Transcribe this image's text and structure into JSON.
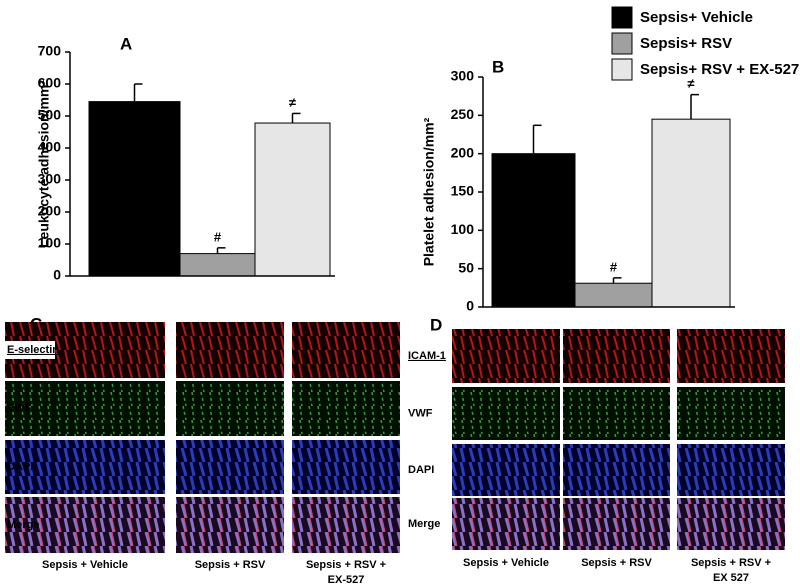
{
  "chart_data": [
    {
      "type": "bar",
      "title": "A",
      "y_label": "Leukocyte adhesion/mm²",
      "categories": [
        null,
        null,
        null
      ],
      "values": [
        545,
        70,
        478
      ],
      "errors": [
        55,
        18,
        30
      ],
      "colors": [
        "#000000",
        "#a0a0a0",
        "#e6e6e6"
      ],
      "annotations": [
        null,
        "#",
        "≠"
      ],
      "ylim": [
        0,
        700
      ],
      "yticks": [
        0,
        100,
        200,
        300,
        400,
        500,
        600,
        700
      ]
    },
    {
      "type": "bar",
      "title": "B",
      "y_label": "Platelet adhesion/mm²",
      "categories": [
        null,
        null,
        null
      ],
      "values": [
        200,
        31,
        245
      ],
      "errors": [
        37,
        7,
        32
      ],
      "colors": [
        "#000000",
        "#a0a0a0",
        "#e6e6e6"
      ],
      "annotations": [
        null,
        "#",
        "≠"
      ],
      "ylim": [
        0,
        300
      ],
      "yticks": [
        0,
        50,
        100,
        150,
        200,
        250,
        300
      ]
    }
  ],
  "legend": [
    {
      "name": "Sepsis+ Vehicle",
      "color": "#000000"
    },
    {
      "name": "Sepsis+ RSV",
      "color": "#a0a0a0"
    },
    {
      "name": "Sepsis+ RSV + EX-527",
      "color": "#e6e6e6"
    }
  ],
  "panels": [
    {
      "label": "C",
      "rows": [
        "E-selectin",
        "VWF",
        "DAPI",
        "Merge"
      ],
      "columns": [
        [
          "Sepsis + Vehicle"
        ],
        [
          "Sepsis + RSV"
        ],
        [
          "Sepsis + RSV +",
          "EX-527"
        ]
      ]
    },
    {
      "label": "D",
      "rows": [
        "ICAM-1",
        "VWF",
        "DAPI",
        "Merge"
      ],
      "columns": [
        [
          "Sepsis + Vehicle"
        ],
        [
          "Sepsis + RSV"
        ],
        [
          "Sepsis + RSV +",
          "EX 527"
        ]
      ]
    }
  ]
}
